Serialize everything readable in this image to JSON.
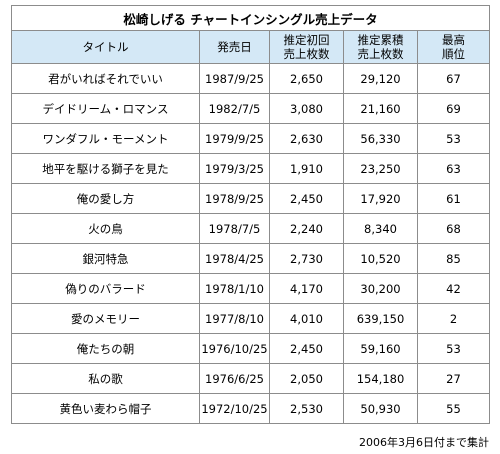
{
  "title": "松崎しげる チャートインシングル売上データ",
  "headers": {
    "title": "タイトル",
    "date": "発売日",
    "first_week": [
      "推定初回",
      "売上枚数"
    ],
    "total": [
      "推定累積",
      "売上枚数"
    ],
    "peak": [
      "最高",
      "順位"
    ]
  },
  "rows": [
    {
      "title": "君がいればそれでいい",
      "date": "1987/9/25",
      "first_week": "2,650",
      "total": "29,120",
      "peak": "67"
    },
    {
      "title": "デイドリーム・ロマンス",
      "date": "1982/7/5",
      "first_week": "3,080",
      "total": "21,160",
      "peak": "69"
    },
    {
      "title": "ワンダフル・モーメント",
      "date": "1979/9/25",
      "first_week": "2,630",
      "total": "56,330",
      "peak": "53"
    },
    {
      "title": "地平を駆ける獅子を見た",
      "date": "1979/3/25",
      "first_week": "1,910",
      "total": "23,250",
      "peak": "63"
    },
    {
      "title": "俺の愛し方",
      "date": "1978/9/25",
      "first_week": "2,450",
      "total": "17,920",
      "peak": "61"
    },
    {
      "title": "火の鳥",
      "date": "1978/7/5",
      "first_week": "2,240",
      "total": "8,340",
      "peak": "68"
    },
    {
      "title": "銀河特急",
      "date": "1978/4/25",
      "first_week": "2,730",
      "total": "10,520",
      "peak": "85"
    },
    {
      "title": "偽りのバラード",
      "date": "1978/1/10",
      "first_week": "4,170",
      "total": "30,200",
      "peak": "42"
    },
    {
      "title": "愛のメモリー",
      "date": "1977/8/10",
      "first_week": "4,010",
      "total": "639,150",
      "peak": "2"
    },
    {
      "title": "俺たちの朝",
      "date": "1976/10/25",
      "first_week": "2,450",
      "total": "59,160",
      "peak": "53"
    },
    {
      "title": "私の歌",
      "date": "1976/6/25",
      "first_week": "2,050",
      "total": "154,180",
      "peak": "27"
    },
    {
      "title": "黄色い麦わら帽子",
      "date": "1972/10/25",
      "first_week": "2,530",
      "total": "50,930",
      "peak": "55"
    }
  ],
  "footer": "2006年3月6日付まで集計"
}
